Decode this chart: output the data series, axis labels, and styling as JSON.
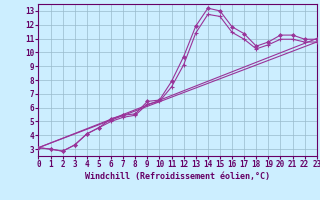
{
  "bg_color": "#cceeff",
  "line_color": "#993399",
  "grid_color": "#99bbcc",
  "axis_color": "#660066",
  "xlabel": "Windchill (Refroidissement éolien,°C)",
  "xlim": [
    0,
    23
  ],
  "ylim": [
    2.5,
    13.5
  ],
  "xticks": [
    0,
    1,
    2,
    3,
    4,
    5,
    6,
    7,
    8,
    9,
    10,
    11,
    12,
    13,
    14,
    15,
    16,
    17,
    18,
    19,
    20,
    21,
    22,
    23
  ],
  "yticks": [
    3,
    4,
    5,
    6,
    7,
    8,
    9,
    10,
    11,
    12,
    13
  ],
  "series1": {
    "x": [
      0,
      1,
      2,
      3,
      4,
      5,
      6,
      7,
      8,
      9,
      10,
      11,
      12,
      13,
      14,
      15,
      16,
      17,
      18,
      19,
      20,
      21,
      22,
      23
    ],
    "y": [
      3.1,
      3.0,
      2.85,
      3.3,
      4.1,
      4.55,
      5.2,
      5.45,
      5.55,
      6.45,
      6.55,
      7.9,
      9.7,
      11.9,
      13.2,
      13.0,
      11.85,
      11.35,
      10.45,
      10.75,
      11.25,
      11.25,
      10.95,
      10.95
    ]
  },
  "series2": {
    "x": [
      0,
      1,
      2,
      3,
      4,
      5,
      6,
      7,
      8,
      9,
      10,
      11,
      12,
      13,
      14,
      15,
      16,
      17,
      18,
      19,
      20,
      21,
      22,
      23
    ],
    "y": [
      3.1,
      3.0,
      2.85,
      3.3,
      4.1,
      4.55,
      5.0,
      5.3,
      5.45,
      6.25,
      6.45,
      7.5,
      9.1,
      11.4,
      12.75,
      12.6,
      11.45,
      10.95,
      10.25,
      10.55,
      10.95,
      10.95,
      10.75,
      10.75
    ]
  },
  "series3": {
    "x": [
      0,
      23
    ],
    "y": [
      3.1,
      11.0
    ]
  },
  "series4": {
    "x": [
      0,
      23
    ],
    "y": [
      3.1,
      10.75
    ]
  }
}
